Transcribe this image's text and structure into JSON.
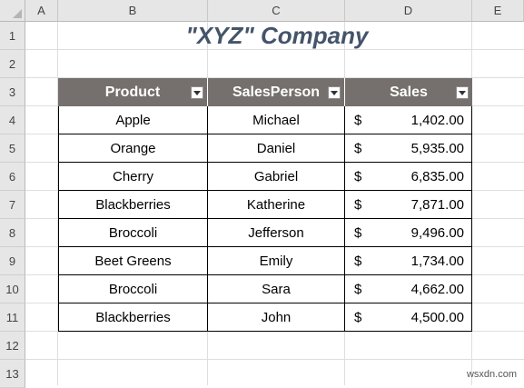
{
  "sheet": {
    "columns": [
      "A",
      "B",
      "C",
      "D",
      "E"
    ],
    "rows": [
      "1",
      "2",
      "3",
      "4",
      "5",
      "6",
      "7",
      "8",
      "9",
      "10",
      "11",
      "12",
      "13"
    ]
  },
  "title": "\"XYZ\" Company",
  "table": {
    "headers": [
      "Product",
      "SalesPerson",
      "Sales"
    ],
    "currency_symbol": "$",
    "rows": [
      {
        "product": "Apple",
        "salesperson": "Michael",
        "sales": "1,402.00"
      },
      {
        "product": "Orange",
        "salesperson": "Daniel",
        "sales": "5,935.00"
      },
      {
        "product": "Cherry",
        "salesperson": "Gabriel",
        "sales": "6,835.00"
      },
      {
        "product": "Blackberries",
        "salesperson": "Katherine",
        "sales": "7,871.00"
      },
      {
        "product": "Broccoli",
        "salesperson": "Jefferson",
        "sales": "9,496.00"
      },
      {
        "product": "Beet Greens",
        "salesperson": "Emily",
        "sales": "1,734.00"
      },
      {
        "product": "Broccoli",
        "salesperson": "Sara",
        "sales": "4,662.00"
      },
      {
        "product": "Blackberries",
        "salesperson": "John",
        "sales": "4,500.00"
      }
    ]
  },
  "colors": {
    "header_fill": "#75706d",
    "title_color": "#44546a"
  },
  "watermark": "wsxdn.com"
}
